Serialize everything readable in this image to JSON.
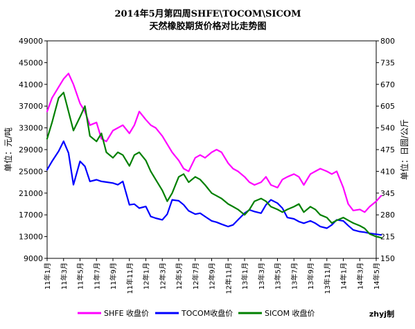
{
  "chart_data": {
    "type": "line",
    "title": "2014年5月第四周SHFE\\TOCOM\\SICOM",
    "subtitle": "天然橡胶期货价格对比走势图",
    "ylabel_left": "单位：元/吨",
    "ylabel_right": "单位：日圆/公斤",
    "ylim_left": [
      9000,
      49000
    ],
    "ylim_right": [
      150,
      800
    ],
    "yticks_left": [
      "9000",
      "13000",
      "17000",
      "21000",
      "25000",
      "29000",
      "33000",
      "37000",
      "41000",
      "45000",
      "49000"
    ],
    "yticks_right": [
      "150",
      "215",
      "280",
      "345",
      "410",
      "475",
      "540",
      "605",
      "670",
      "735",
      "800"
    ],
    "xticks": [
      "11年1月",
      "11年3月",
      "11年5月",
      "11年7月",
      "11年9月",
      "11年11月",
      "12年1月",
      "12年3月",
      "12年5月",
      "12年7月",
      "12年9月",
      "12年11月",
      "13年1月",
      "13年3月",
      "13年5月",
      "13年7月",
      "13年9月",
      "13年11月",
      "14年1月",
      "14年3月",
      "14年5月"
    ],
    "grid": false,
    "legend_position": "bottom",
    "credit": "zhyj制",
    "series": [
      {
        "name": "SHFE 收盘价",
        "axis": "left",
        "color": "#ff00ff",
        "x": [
          0,
          0.3,
          0.7,
          1.0,
          1.3,
          1.6,
          2.0,
          2.3,
          2.6,
          3.0,
          3.3,
          3.6,
          4.0,
          4.3,
          4.6,
          5.0,
          5.3,
          5.6,
          6.0,
          6.3,
          6.6,
          7.0,
          7.3,
          7.6,
          8.0,
          8.3,
          8.6,
          9.0,
          9.3,
          9.6,
          10.0,
          10.3,
          10.6,
          11.0,
          11.3,
          11.6,
          12.0,
          12.3,
          12.6,
          13.0,
          13.3,
          13.6,
          14.0,
          14.3,
          14.6,
          15.0,
          15.3,
          15.6,
          16.0,
          16.3,
          16.6,
          17.0,
          17.3,
          17.6,
          18.0,
          18.3,
          18.6,
          19.0,
          19.3,
          19.6,
          20.0,
          20.3
        ],
        "values": [
          36000,
          38500,
          40500,
          42000,
          43000,
          41000,
          37500,
          36000,
          33500,
          34000,
          31000,
          30500,
          32500,
          33000,
          33500,
          32000,
          33500,
          36000,
          34500,
          33500,
          33000,
          31500,
          30000,
          28500,
          27000,
          25500,
          25000,
          27500,
          28000,
          27500,
          28500,
          29000,
          28500,
          26500,
          25500,
          25000,
          24000,
          23000,
          22500,
          23000,
          24000,
          22500,
          22000,
          23500,
          24000,
          24500,
          24000,
          22500,
          24500,
          25000,
          25500,
          25000,
          24500,
          25000,
          22000,
          19000,
          17800,
          18000,
          17500,
          18500,
          19500,
          20500
        ]
      },
      {
        "name": "TOCOM收盘价",
        "axis": "right",
        "color": "#0000ff",
        "x": [
          0,
          0.3,
          0.7,
          1.0,
          1.3,
          1.6,
          2.0,
          2.3,
          2.6,
          3.0,
          3.3,
          3.6,
          4.0,
          4.3,
          4.6,
          5.0,
          5.3,
          5.6,
          6.0,
          6.3,
          6.6,
          7.0,
          7.3,
          7.6,
          8.0,
          8.3,
          8.6,
          9.0,
          9.3,
          9.6,
          10.0,
          10.3,
          10.6,
          11.0,
          11.3,
          11.6,
          12.0,
          12.3,
          12.6,
          13.0,
          13.3,
          13.6,
          14.0,
          14.3,
          14.6,
          15.0,
          15.3,
          15.6,
          16.0,
          16.3,
          16.6,
          17.0,
          17.3,
          17.6,
          18.0,
          18.3,
          18.6,
          19.0,
          19.3,
          19.6,
          20.0,
          20.3
        ],
        "values": [
          415,
          440,
          470,
          500,
          465,
          370,
          440,
          425,
          380,
          385,
          380,
          378,
          375,
          370,
          380,
          310,
          312,
          300,
          305,
          275,
          270,
          265,
          282,
          325,
          322,
          310,
          292,
          282,
          285,
          275,
          262,
          258,
          252,
          245,
          250,
          265,
          285,
          295,
          290,
          285,
          310,
          325,
          315,
          300,
          272,
          268,
          260,
          255,
          262,
          255,
          245,
          240,
          250,
          265,
          262,
          248,
          235,
          230,
          228,
          225,
          222,
          220
        ]
      },
      {
        "name": "SICOM 收盘价",
        "axis": "left",
        "color": "#008000",
        "x": [
          0,
          0.3,
          0.7,
          1.0,
          1.3,
          1.6,
          2.0,
          2.3,
          2.6,
          3.0,
          3.3,
          3.6,
          4.0,
          4.3,
          4.6,
          5.0,
          5.3,
          5.6,
          6.0,
          6.3,
          6.6,
          7.0,
          7.3,
          7.6,
          8.0,
          8.3,
          8.6,
          9.0,
          9.3,
          9.6,
          10.0,
          10.3,
          10.6,
          11.0,
          11.3,
          11.6,
          12.0,
          12.3,
          12.6,
          13.0,
          13.3,
          13.6,
          14.0,
          14.3,
          14.6,
          15.0,
          15.3,
          15.6,
          16.0,
          16.3,
          16.6,
          17.0,
          17.3,
          17.6,
          18.0,
          18.3,
          18.6,
          19.0,
          19.3,
          19.6,
          20.0,
          20.3
        ],
        "values": [
          31000,
          34000,
          38500,
          39500,
          36000,
          32500,
          35000,
          37000,
          31500,
          30500,
          32000,
          28500,
          27500,
          28500,
          28000,
          26000,
          28000,
          28500,
          27000,
          25000,
          23500,
          21500,
          19500,
          21000,
          24000,
          24500,
          23000,
          24000,
          23500,
          22500,
          21000,
          20500,
          20000,
          19000,
          18500,
          18000,
          17000,
          18000,
          19500,
          20000,
          19500,
          18500,
          18000,
          17500,
          18000,
          18500,
          19000,
          17500,
          18500,
          18000,
          17000,
          16500,
          15500,
          16000,
          16500,
          16000,
          15500,
          15000,
          14500,
          13500,
          13000,
          12800
        ]
      }
    ]
  }
}
